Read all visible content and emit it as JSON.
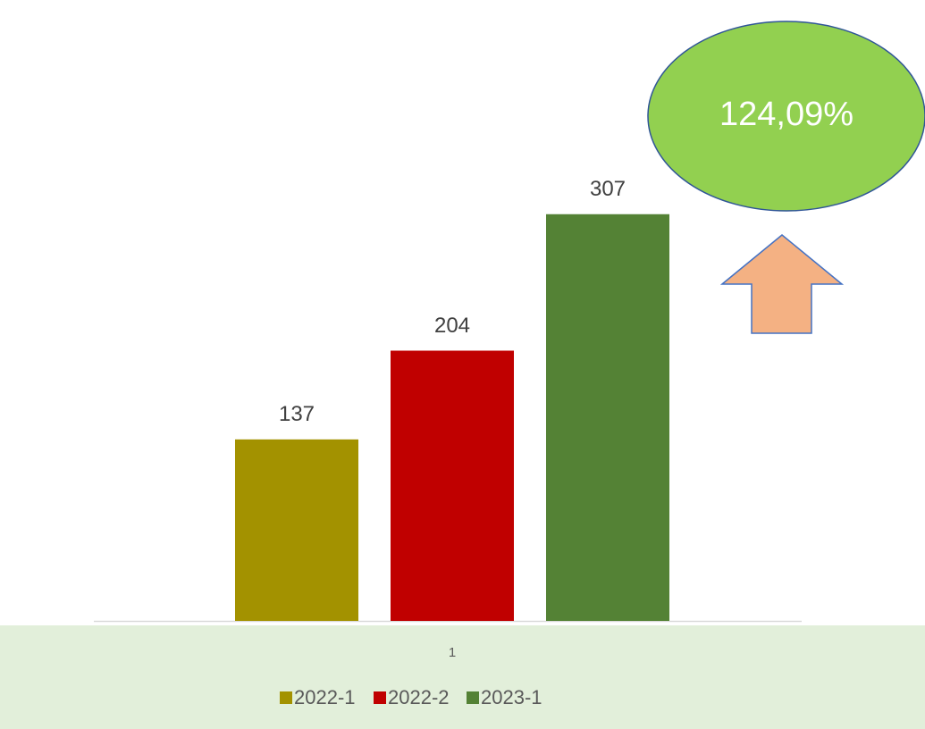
{
  "chart_data": {
    "type": "bar",
    "categories": [
      "1"
    ],
    "series": [
      {
        "name": "2022-1",
        "color": "#a39200",
        "values": [
          137
        ]
      },
      {
        "name": "2022-2",
        "color": "#c00000",
        "values": [
          204
        ]
      },
      {
        "name": "2023-1",
        "color": "#548235",
        "values": [
          307
        ]
      }
    ],
    "ylim": [
      0,
      350
    ],
    "grid": false,
    "legend": "bottom",
    "annotations": [
      {
        "text": "124,09%"
      }
    ]
  }
}
